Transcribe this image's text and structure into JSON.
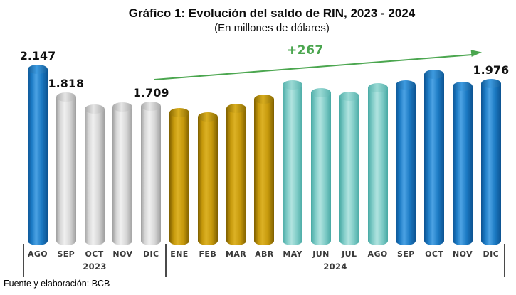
{
  "page": {
    "title": "Gráfico 1: Evolución del saldo de RIN, 2023 - 2024",
    "subtitle": "(En millones de dólares)",
    "source": "Fuente y elaboración: BCB"
  },
  "chart_data": {
    "type": "bar",
    "title": "Gráfico 1: Evolución del saldo de RIN, 2023 - 2024",
    "subtitle": "(En millones de dólares)",
    "unit": "millones de dólares",
    "ylim": [
      0,
      2300
    ],
    "grid": false,
    "legend": false,
    "groups": [
      {
        "year": "2023",
        "months": [
          "AGO",
          "SEP",
          "OCT",
          "NOV",
          "DIC"
        ]
      },
      {
        "year": "2024",
        "months": [
          "ENE",
          "FEB",
          "MAR",
          "ABR",
          "MAY",
          "JUN",
          "JUL",
          "AGO",
          "SEP",
          "OCT",
          "NOV",
          "DIC"
        ]
      }
    ],
    "bars": [
      {
        "year": "2023",
        "month": "AGO",
        "value": 2147,
        "label": "2.147",
        "color": "blue"
      },
      {
        "year": "2023",
        "month": "SEP",
        "value": 1818,
        "label": "1.818",
        "color": "silver"
      },
      {
        "year": "2023",
        "month": "OCT",
        "value": 1670,
        "color": "silver"
      },
      {
        "year": "2023",
        "month": "NOV",
        "value": 1695,
        "color": "silver"
      },
      {
        "year": "2023",
        "month": "DIC",
        "value": 1709,
        "label": "1.709",
        "color": "silver"
      },
      {
        "year": "2024",
        "month": "ENE",
        "value": 1630,
        "color": "gold"
      },
      {
        "year": "2024",
        "month": "FEB",
        "value": 1580,
        "color": "gold"
      },
      {
        "year": "2024",
        "month": "MAR",
        "value": 1680,
        "color": "gold"
      },
      {
        "year": "2024",
        "month": "ABR",
        "value": 1790,
        "color": "gold"
      },
      {
        "year": "2024",
        "month": "MAY",
        "value": 1960,
        "color": "teal"
      },
      {
        "year": "2024",
        "month": "JUN",
        "value": 1865,
        "color": "teal"
      },
      {
        "year": "2024",
        "month": "JUL",
        "value": 1825,
        "color": "teal"
      },
      {
        "year": "2024",
        "month": "AGO",
        "value": 1930,
        "color": "teal"
      },
      {
        "year": "2024",
        "month": "SEP",
        "value": 1960,
        "color": "blue"
      },
      {
        "year": "2024",
        "month": "OCT",
        "value": 2090,
        "color": "blue"
      },
      {
        "year": "2024",
        "month": "NOV",
        "value": 1945,
        "color": "blue"
      },
      {
        "year": "2024",
        "month": "DIC",
        "value": 1976,
        "label": "1.976",
        "color": "blue"
      }
    ],
    "annotation": {
      "text": "+267",
      "from": "DIC 2023",
      "to": "DIC 2024",
      "color": "#4ba64f"
    },
    "colors": {
      "blue": "#1b7ac4",
      "silver": "#c9c9c9",
      "gold": "#c6990b",
      "teal": "#7fccc7",
      "annotation_green": "#4ba64f"
    }
  }
}
